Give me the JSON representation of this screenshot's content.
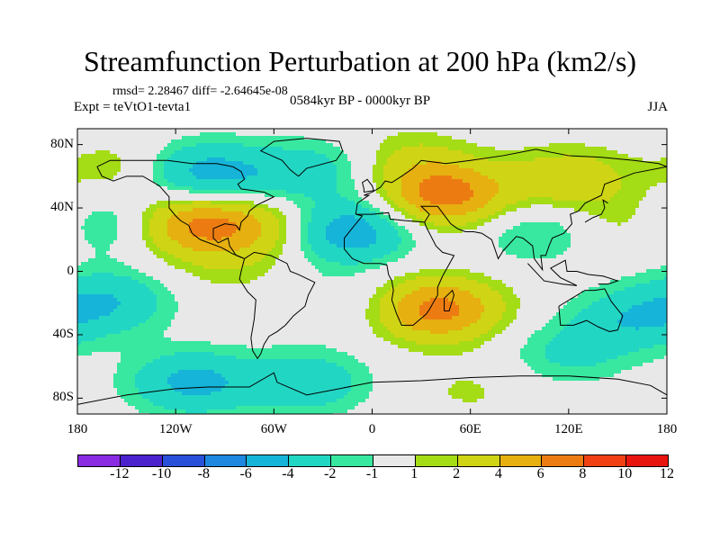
{
  "chart_data": {
    "type": "heatmap",
    "title": "Streamfunction Perturbation at 200 hPa (km2/s)",
    "stats": "rmsd= 2.28467 diff= -2.64645e-08",
    "experiment": "Expt = teVtO1-tevta1",
    "period": "0584kyr BP - 0000kyr BP",
    "season": "JJA",
    "y_tick_labels": [
      "80N",
      "40N",
      "0",
      "40S",
      "80S"
    ],
    "y_tick_values": [
      80,
      40,
      0,
      -40,
      -80
    ],
    "x_tick_labels": [
      "180",
      "120W",
      "60W",
      "0",
      "60E",
      "120E",
      "180"
    ],
    "x_tick_values": [
      -180,
      -120,
      -60,
      0,
      60,
      120,
      180
    ],
    "xlim": [
      -180,
      180
    ],
    "ylim": [
      -90,
      90
    ],
    "colorbar_labels": [
      "-12",
      "-10",
      "-8",
      "-6",
      "-4",
      "-2",
      "-1",
      "1",
      "2",
      "4",
      "6",
      "8",
      "10",
      "12"
    ],
    "colorbar_colors": [
      "#8a2be2",
      "#4b22cc",
      "#2850d8",
      "#1e88e0",
      "#16b4d8",
      "#22d6c4",
      "#38e8a0",
      "#e8e8e8",
      "#a4dc16",
      "#cfd414",
      "#e6b010",
      "#ec7c12",
      "#f04014",
      "#e8140e"
    ],
    "anomaly_centers": [
      {
        "lon": -148,
        "lat": 64,
        "value": 2
      },
      {
        "lon": -110,
        "lat": 62,
        "value": -4
      },
      {
        "lon": -70,
        "lat": 60,
        "value": -2
      },
      {
        "lon": -110,
        "lat": 30,
        "value": 5
      },
      {
        "lon": -70,
        "lat": 28,
        "value": 3
      },
      {
        "lon": -165,
        "lat": 30,
        "value": -3
      },
      {
        "lon": -15,
        "lat": 25,
        "value": -5
      },
      {
        "lon": -25,
        "lat": 65,
        "value": -2
      },
      {
        "lon": 45,
        "lat": 48,
        "value": 6
      },
      {
        "lon": 20,
        "lat": 70,
        "value": 2
      },
      {
        "lon": 120,
        "lat": 58,
        "value": 3
      },
      {
        "lon": 100,
        "lat": 25,
        "value": -2
      },
      {
        "lon": 165,
        "lat": 30,
        "value": 2
      },
      {
        "lon": 40,
        "lat": -24,
        "value": 6
      },
      {
        "lon": -158,
        "lat": -18,
        "value": -3
      },
      {
        "lon": 160,
        "lat": -30,
        "value": -3
      },
      {
        "lon": 120,
        "lat": -52,
        "value": -2
      },
      {
        "lon": -110,
        "lat": -70,
        "value": -4
      },
      {
        "lon": -40,
        "lat": -70,
        "value": -3
      },
      {
        "lon": 60,
        "lat": -75,
        "value": 1
      },
      {
        "lon": -90,
        "lat": 0,
        "value": 1
      },
      {
        "lon": -20,
        "lat": -20,
        "value": -1
      }
    ]
  }
}
